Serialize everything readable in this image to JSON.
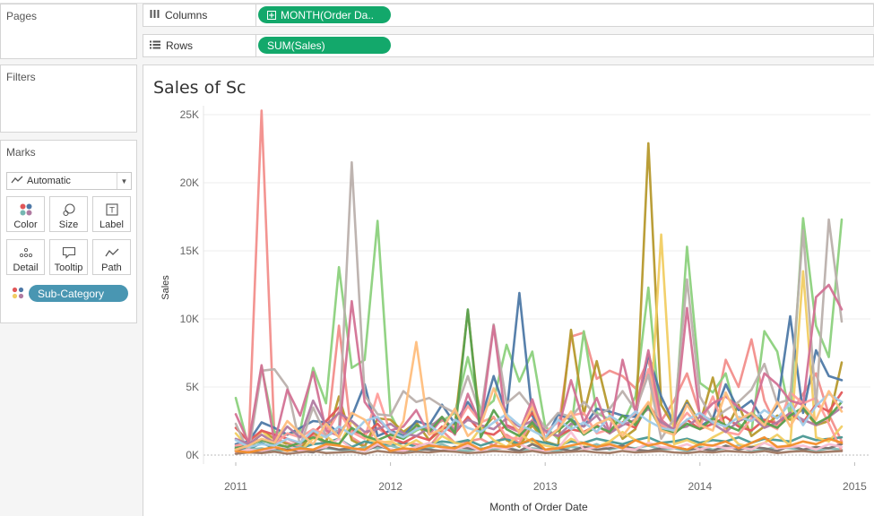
{
  "left_panel": {
    "pages_title": "Pages",
    "filters_title": "Filters",
    "marks_title": "Marks",
    "mark_type": "Automatic",
    "mark_buttons": [
      {
        "label": "Color",
        "icon": "color-dots-icon"
      },
      {
        "label": "Size",
        "icon": "size-icon"
      },
      {
        "label": "Label",
        "icon": "label-icon"
      },
      {
        "label": "Detail",
        "icon": "detail-dots-icon"
      },
      {
        "label": "Tooltip",
        "icon": "tooltip-icon"
      },
      {
        "label": "Path",
        "icon": "path-icon"
      }
    ],
    "color_field": "Sub-Category"
  },
  "shelves": {
    "columns_label": "Columns",
    "columns_pill": "MONTH(Order Da..",
    "rows_label": "Rows",
    "rows_pill": "SUM(Sales)"
  },
  "colors": {
    "accent_green": "#13a86b",
    "accent_blue": "#4996b2"
  },
  "chart_data": {
    "type": "line",
    "title": "Sales of Sc",
    "xlabel": "Month of Order Date",
    "ylabel": "Sales",
    "x_range": [
      "2011-01",
      "2014-12"
    ],
    "x_tick_labels": [
      "2011",
      "2012",
      "2013",
      "2014",
      "2015"
    ],
    "ylim": [
      0,
      25000
    ],
    "y_tick_labels": [
      "0K",
      "5K",
      "10K",
      "15K",
      "20K",
      "25K"
    ],
    "y_tick_values": [
      0,
      5000,
      10000,
      15000,
      20000,
      25000
    ],
    "grid": true,
    "legend": "none",
    "series": [
      {
        "color": "#f28e8b",
        "values": [
          500,
          800,
          25300,
          1200,
          900,
          600,
          1500,
          800,
          9500,
          1300,
          700,
          2000,
          1300,
          900,
          800,
          600,
          1800,
          900,
          1000,
          1200,
          700,
          1500,
          900,
          2600,
          1300,
          1800,
          8700,
          9000,
          5600,
          6200,
          5800,
          4900,
          7000,
          2500,
          4000,
          6000,
          3000,
          2500,
          7000,
          5000,
          8500,
          4000,
          2000,
          3000,
          4500,
          6000,
          3000,
          1000
        ]
      },
      {
        "color": "#8cd17d",
        "values": [
          4200,
          600,
          6500,
          1700,
          1500,
          1800,
          6400,
          3800,
          13800,
          6400,
          7000,
          17200,
          3000,
          1200,
          1800,
          2200,
          2500,
          3100,
          7200,
          3200,
          4000,
          8100,
          5400,
          7600,
          2100,
          1200,
          1900,
          9100,
          3100,
          2600,
          2300,
          4300,
          12300,
          1800,
          1600,
          15300,
          5300,
          4600,
          6000,
          2300,
          1700,
          9100,
          7600,
          2800,
          17400,
          9500,
          7200,
          17300
        ]
      },
      {
        "color": "#b6992d",
        "values": [
          300,
          200,
          1800,
          1200,
          800,
          400,
          1700,
          900,
          4300,
          1100,
          600,
          2700,
          2600,
          1700,
          2400,
          1100,
          1900,
          2300,
          10600,
          1800,
          2800,
          1100,
          600,
          2200,
          1000,
          700,
          9200,
          3000,
          6900,
          3000,
          1200,
          1900,
          22900,
          3700,
          2100,
          4000,
          2300,
          5700,
          1800,
          3700,
          1400,
          2100,
          2900,
          2600,
          3400,
          2200,
          2500,
          6800
        ]
      },
      {
        "color": "#4e79a7",
        "values": [
          800,
          1000,
          2400,
          2000,
          1500,
          2000,
          2500,
          2400,
          1600,
          2800,
          5200,
          1400,
          1800,
          1400,
          2500,
          2200,
          3700,
          2300,
          3900,
          2500,
          5800,
          3000,
          11900,
          2900,
          1100,
          3000,
          2600,
          2100,
          3400,
          3200,
          2900,
          2800,
          7400,
          4300,
          2300,
          3800,
          2100,
          2700,
          5200,
          3300,
          4000,
          2400,
          3600,
          10200,
          3100,
          7700,
          5800,
          5500
        ]
      },
      {
        "color": "#499894",
        "values": [
          600,
          400,
          900,
          500,
          700,
          500,
          800,
          900,
          1200,
          600,
          1000,
          800,
          700,
          900,
          600,
          800,
          1000,
          900,
          1100,
          700,
          1000,
          1200,
          800,
          1100,
          900,
          700,
          1000,
          900,
          1200,
          1000,
          800,
          1100,
          1300,
          900,
          1000,
          1200,
          900,
          1100,
          1000,
          1300,
          900,
          1200,
          1100,
          1000,
          1400,
          1100,
          1200,
          1300
        ]
      },
      {
        "color": "#f1ce63",
        "values": [
          1600,
          500,
          1800,
          900,
          600,
          300,
          1200,
          1400,
          700,
          2500,
          1300,
          900,
          1000,
          600,
          1100,
          500,
          1400,
          900,
          700,
          2000,
          1100,
          600,
          1600,
          900,
          700,
          500,
          1200,
          800,
          600,
          1000,
          1700,
          1100,
          700,
          16200,
          800,
          1100,
          700,
          1300,
          1800,
          800,
          600,
          900,
          1500,
          700,
          13500,
          1300,
          1000,
          2100
        ]
      },
      {
        "color": "#86bcb6",
        "values": [
          300,
          400,
          500,
          300,
          400,
          600,
          300,
          500,
          400,
          300,
          600,
          500,
          700,
          400,
          300,
          500,
          800,
          400,
          300,
          500,
          400,
          600,
          300,
          500,
          400,
          300,
          600,
          500,
          800,
          400,
          600,
          500,
          700,
          400,
          500,
          300,
          600,
          400,
          500,
          700,
          300,
          400,
          600,
          500,
          400,
          300,
          500,
          400
        ]
      },
      {
        "color": "#e15759",
        "values": [
          2000,
          1000,
          1800,
          1500,
          1200,
          800,
          1600,
          2500,
          3500,
          1800,
          1500,
          2300,
          1200,
          900,
          1400,
          1100,
          2100,
          1600,
          2800,
          1700,
          1500,
          2200,
          1800,
          3100,
          1700,
          1400,
          1900,
          1700,
          2200,
          1600,
          2400,
          2000,
          3800,
          2200,
          1500,
          2600,
          1900,
          2300,
          2800,
          2100,
          1800,
          2600,
          2300,
          3100,
          2400,
          3700,
          3200,
          4600
        ]
      },
      {
        "color": "#ff9d9a",
        "values": [
          700,
          900,
          1100,
          800,
          1600,
          1300,
          1900,
          1500,
          3200,
          1700,
          1200,
          4500,
          1600,
          1300,
          2100,
          1800,
          2600,
          2000,
          3600,
          2400,
          2800,
          1300,
          1200,
          3800,
          1700,
          2400,
          2900,
          3100,
          1600,
          1900,
          2300,
          3100,
          6300,
          2200,
          1900,
          3100,
          2100,
          4300,
          1700,
          1500,
          2700,
          2400,
          1900,
          4600,
          3800,
          4200,
          2300,
          300
        ]
      },
      {
        "color": "#79706e",
        "values": [
          400,
          300,
          200,
          500,
          400,
          300,
          200,
          600,
          400,
          500,
          300,
          700,
          400,
          300,
          500,
          400,
          300,
          600,
          500,
          400,
          700,
          500,
          300,
          800,
          400,
          500,
          300,
          600,
          400,
          500,
          700,
          400,
          300,
          500,
          600,
          400,
          500,
          300,
          700,
          400,
          600,
          500,
          300,
          700,
          400,
          600,
          500,
          800
        ]
      },
      {
        "color": "#bab0ac",
        "values": [
          2300,
          200,
          6200,
          6300,
          5000,
          700,
          3500,
          1400,
          1800,
          21500,
          4400,
          3000,
          2900,
          4700,
          3900,
          4200,
          3600,
          3100,
          5800,
          2900,
          9600,
          3800,
          4600,
          3400,
          2000,
          3100,
          2800,
          3900,
          2900,
          3400,
          4700,
          3300,
          5900,
          1200,
          2700,
          12900,
          4300,
          2600,
          3300,
          3900,
          4800,
          6700,
          3800,
          4100,
          16500,
          3600,
          17300,
          9800
        ]
      },
      {
        "color": "#d37295",
        "values": [
          3000,
          900,
          6600,
          900,
          4800,
          2900,
          6100,
          1800,
          1400,
          11300,
          3900,
          2600,
          1800,
          2100,
          3300,
          1500,
          2700,
          1500,
          4500,
          2200,
          9500,
          2100,
          1700,
          4100,
          1200,
          1900,
          5500,
          2400,
          4200,
          1700,
          7000,
          3200,
          7700,
          2600,
          1800,
          10800,
          2800,
          3800,
          4300,
          3500,
          2900,
          6000,
          5200,
          4000,
          3700,
          11600,
          12500,
          10700
        ]
      },
      {
        "color": "#fabfd2",
        "values": [
          200,
          400,
          300,
          500,
          700,
          300,
          400,
          600,
          1200,
          500,
          300,
          800,
          400,
          300,
          600,
          900,
          500,
          400,
          700,
          300,
          600,
          500,
          800,
          400,
          300,
          500,
          1700,
          400,
          600,
          700,
          500,
          400,
          900,
          600,
          500,
          800,
          400,
          700,
          500,
          600,
          400,
          900,
          500,
          600,
          700,
          400,
          800,
          600
        ]
      },
      {
        "color": "#b07aa1",
        "values": [
          1200,
          800,
          1500,
          900,
          2100,
          1300,
          4000,
          2200,
          3100,
          2500,
          1700,
          1900,
          2300,
          1600,
          1400,
          2000,
          2800,
          1800,
          2600,
          2200,
          1900,
          2700,
          2100,
          2500,
          1800,
          1400,
          2300,
          2100,
          2900,
          1600,
          2200,
          2600,
          3400,
          2400,
          1900,
          2100,
          2800,
          2300,
          1700,
          2500,
          2900,
          2000,
          2400,
          3100,
          2600,
          2200,
          2800,
          3500
        ]
      },
      {
        "color": "#9d7660",
        "values": [
          100,
          200,
          150,
          250,
          100,
          200,
          300,
          150,
          200,
          250,
          100,
          300,
          200,
          150,
          250,
          200,
          300,
          250,
          150,
          200,
          300,
          250,
          200,
          300,
          150,
          200,
          250,
          300,
          200,
          150,
          300,
          200,
          250,
          300,
          200,
          150,
          250,
          200,
          300,
          250,
          200,
          300,
          150,
          250,
          300,
          200,
          250,
          300
        ]
      },
      {
        "color": "#59a14f",
        "values": [
          500,
          700,
          1100,
          800,
          600,
          900,
          1300,
          1000,
          800,
          2000,
          1400,
          1100,
          1500,
          1200,
          2200,
          1700,
          2800,
          1600,
          10700,
          1300,
          3300,
          1900,
          1400,
          2400,
          1200,
          1800,
          2600,
          1500,
          2100,
          1700,
          2900,
          2200,
          3600,
          1900,
          1600,
          2300,
          1900,
          2700,
          2200,
          1800,
          3100,
          2400,
          2000,
          2900,
          3500,
          2300,
          2800,
          3900
        ]
      },
      {
        "color": "#f28e2b",
        "values": [
          300,
          200,
          400,
          600,
          300,
          500,
          400,
          800,
          700,
          500,
          400,
          1000,
          300,
          500,
          400,
          700,
          600,
          500,
          900,
          400,
          700,
          600,
          800,
          1200,
          400,
          500,
          700,
          900,
          600,
          800,
          500,
          1100,
          700,
          900,
          600,
          400,
          800,
          700,
          1000,
          500,
          900,
          1300,
          600,
          700,
          1000,
          800,
          1200,
          900
        ]
      },
      {
        "color": "#a0cbe8",
        "values": [
          1100,
          600,
          800,
          700,
          1200,
          900,
          1800,
          1300,
          2100,
          1500,
          2500,
          2800,
          1700,
          1300,
          1900,
          2200,
          1500,
          2600,
          2000,
          1700,
          2400,
          3000,
          2200,
          1800,
          1300,
          2600,
          1900,
          2400,
          1700,
          2900,
          2300,
          3200,
          2500,
          2000,
          1800,
          2600,
          3100,
          2400,
          2100,
          2800,
          2500,
          3300,
          2700,
          3800,
          2200,
          3600,
          4500,
          3900
        ]
      },
      {
        "color": "#ffbe7d",
        "values": [
          400,
          700,
          1200,
          900,
          2500,
          1600,
          800,
          2300,
          1300,
          3100,
          2600,
          1100,
          800,
          2500,
          8300,
          1500,
          1900,
          3400,
          1400,
          2200,
          4900,
          2800,
          1700,
          3500,
          1100,
          1900,
          3200,
          1600,
          2300,
          2700,
          1400,
          2600,
          3900,
          1800,
          1500,
          3700,
          2200,
          1800,
          4600,
          2600,
          3100,
          2200,
          3900,
          2100,
          3700,
          2600,
          4700,
          3200
        ]
      }
    ]
  }
}
